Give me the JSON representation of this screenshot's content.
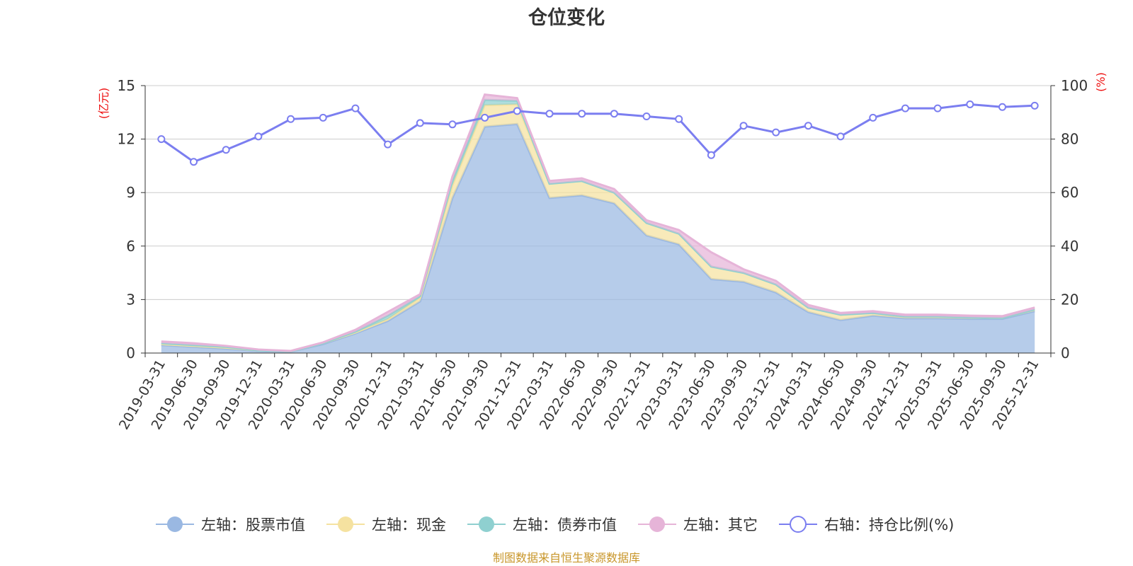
{
  "chart_data": {
    "type": "area",
    "title": "仓位变化",
    "left_axis_unit": "(亿元)",
    "right_axis_unit": "(%)",
    "left_ylim": [
      0,
      15
    ],
    "left_ticks": [
      "0",
      "3",
      "6",
      "9",
      "12",
      "15"
    ],
    "right_ylim": [
      0,
      100
    ],
    "right_ticks": [
      "0",
      "20",
      "40",
      "60",
      "80",
      "100"
    ],
    "categories": [
      "2019-03-31",
      "2019-06-30",
      "2019-09-30",
      "2019-12-31",
      "2020-03-31",
      "2020-06-30",
      "2020-09-30",
      "2020-12-31",
      "2021-03-31",
      "2021-06-30",
      "2021-09-30",
      "2021-12-31",
      "2022-03-31",
      "2022-06-30",
      "2022-09-30",
      "2022-12-31",
      "2023-03-31",
      "2023-06-30",
      "2023-09-30",
      "2023-12-31",
      "2024-03-31",
      "2024-06-30",
      "2024-09-30",
      "2024-12-31",
      "2025-03-31",
      "2025-06-30",
      "2025-09-30",
      "2025-12-31"
    ],
    "series": [
      {
        "name": "左轴：股票市值",
        "axis": "left",
        "kind": "stacked-area",
        "color": "#9ab8e2",
        "values": [
          0.45,
          0.35,
          0.25,
          0.12,
          0.08,
          0.5,
          1.1,
          1.8,
          2.9,
          8.7,
          12.7,
          12.85,
          8.7,
          8.85,
          8.4,
          6.6,
          6.1,
          4.15,
          4.0,
          3.4,
          2.3,
          1.85,
          2.1,
          1.95,
          1.95,
          1.92,
          1.92,
          2.35
        ]
      },
      {
        "name": "左轴：现金",
        "axis": "left",
        "kind": "stacked-area",
        "color": "#f5e2a0",
        "values": [
          0.05,
          0.05,
          0.05,
          0.03,
          0.02,
          0.05,
          0.05,
          0.1,
          0.2,
          0.7,
          1.2,
          1.1,
          0.8,
          0.8,
          0.6,
          0.7,
          0.6,
          0.7,
          0.5,
          0.45,
          0.25,
          0.3,
          0.15,
          0.1,
          0.1,
          0.08,
          0.05,
          0.1
        ]
      },
      {
        "name": "左轴：债券市值",
        "axis": "left",
        "kind": "stacked-area",
        "color": "#8fd0d0",
        "values": [
          0.05,
          0.05,
          0.05,
          0.0,
          0.0,
          0.0,
          0.05,
          0.2,
          0.1,
          0.3,
          0.3,
          0.2,
          0.0,
          0.0,
          0.0,
          0.0,
          0.0,
          0.0,
          0.0,
          0.0,
          0.0,
          0.0,
          0.0,
          0.0,
          0.0,
          0.0,
          0.0,
          0.0
        ]
      },
      {
        "name": "左轴：其它",
        "axis": "left",
        "kind": "stacked-area",
        "color": "#e6b4d8",
        "values": [
          0.1,
          0.1,
          0.05,
          0.05,
          0.02,
          0.05,
          0.1,
          0.2,
          0.1,
          0.2,
          0.3,
          0.15,
          0.15,
          0.15,
          0.2,
          0.15,
          0.2,
          0.8,
          0.2,
          0.2,
          0.15,
          0.1,
          0.1,
          0.1,
          0.1,
          0.1,
          0.1,
          0.1
        ]
      },
      {
        "name": "右轴：持仓比例(%)",
        "axis": "right",
        "kind": "line",
        "color": "#7b7ef0",
        "values": [
          80,
          71.5,
          76,
          81,
          87.5,
          88,
          91.5,
          78,
          86,
          85.5,
          88,
          90.5,
          89.5,
          89.5,
          89.5,
          88.5,
          87.5,
          74,
          85,
          82.5,
          85,
          81,
          88,
          91.5,
          91.5,
          93,
          92,
          92.5
        ]
      }
    ],
    "source": "制图数据来自恒生聚源数据库"
  }
}
